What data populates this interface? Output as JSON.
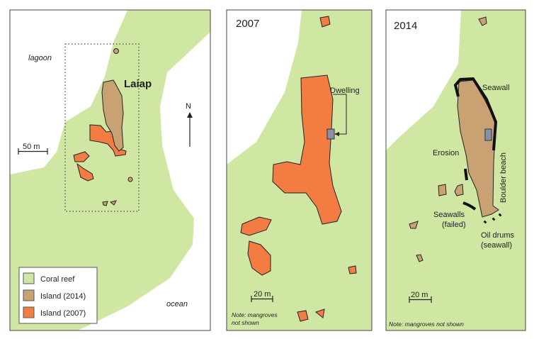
{
  "colors": {
    "coral_reef": "#cfe7a2",
    "island_2014": "#c9a274",
    "island_2007": "#f37c43",
    "dwelling": "#8a8fa8"
  },
  "overview": {
    "island_name": "Laiap",
    "lagoon_label": "lagoon",
    "ocean_label": "ocean",
    "north_label": "N",
    "scale_label": "50 m",
    "legend": [
      {
        "label": "Coral reef",
        "color_key": "coral_reef"
      },
      {
        "label": "Island (2014)",
        "color_key": "island_2014"
      },
      {
        "label": "Island (2007)",
        "color_key": "island_2007"
      }
    ]
  },
  "panel_2007": {
    "title": "2007",
    "dwelling_label": "Dwelling",
    "scale_label": "20 m",
    "note_line1": "Note: mangroves",
    "note_line2": "not shown"
  },
  "panel_2014": {
    "title": "2014",
    "seawall_label": "Seawall",
    "erosion_label": "Erosion",
    "boulder_label": "Boulder beach",
    "failed_line1": "Seawalls",
    "failed_line2": "(failed)",
    "drums_line1": "Oil drums",
    "drums_line2": "(seawall)",
    "scale_label": "20 m",
    "note": "Note: mangroves not shown"
  }
}
